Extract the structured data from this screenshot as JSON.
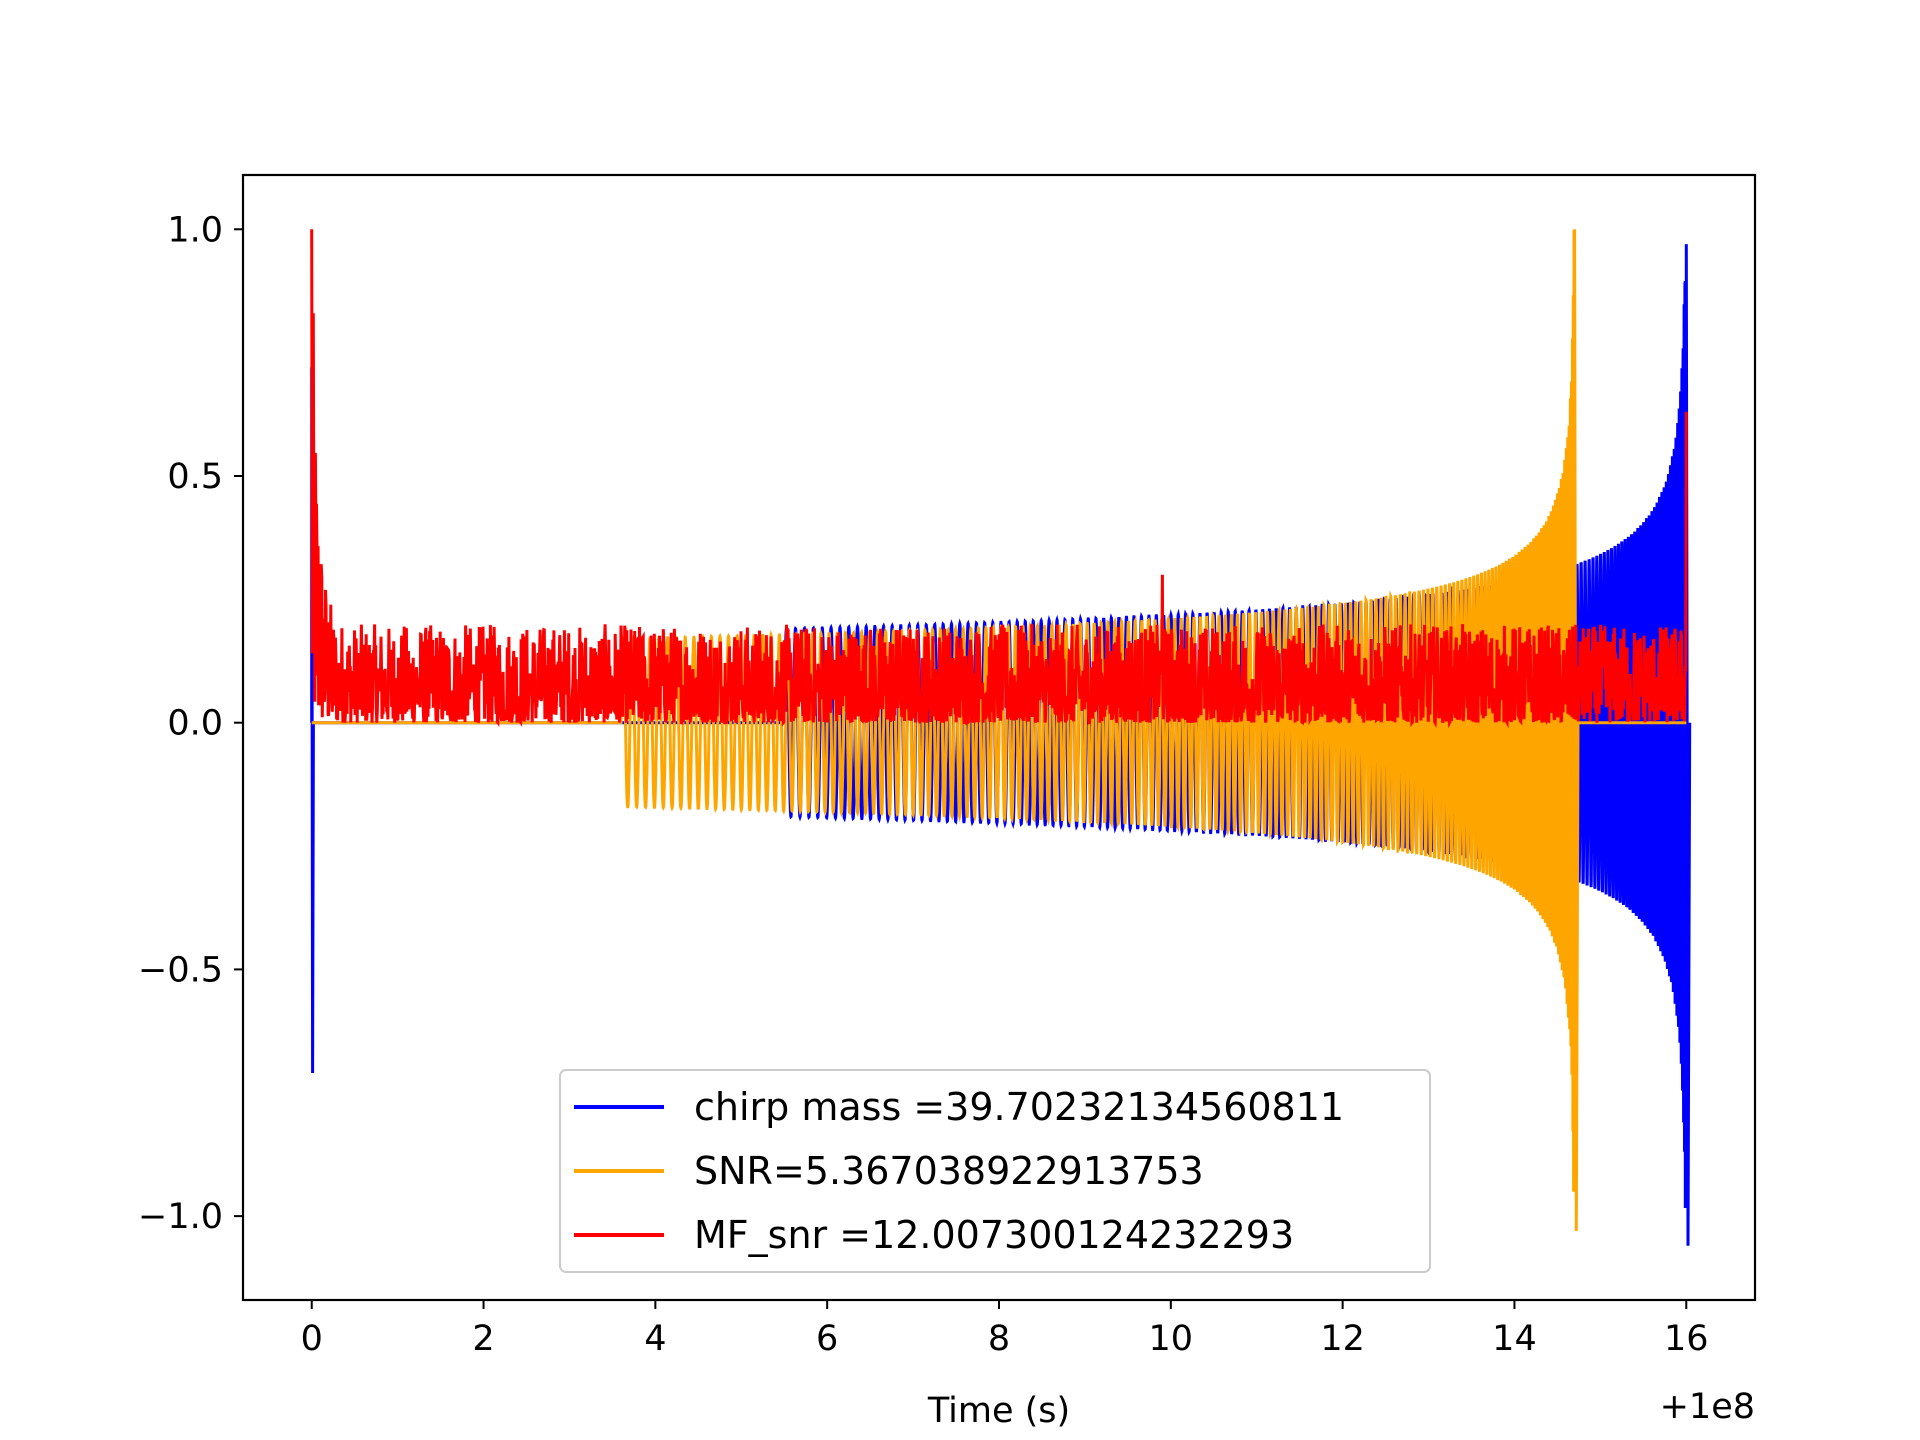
{
  "chart_data": {
    "type": "line",
    "title": "",
    "xlabel": "Time (s)",
    "ylabel": "",
    "x_offset_label": "+1e8",
    "xlim": [
      -0.8,
      16.8
    ],
    "ylim": [
      -1.17,
      1.11
    ],
    "xticks": [
      0,
      2,
      4,
      6,
      8,
      10,
      12,
      14,
      16
    ],
    "yticks": [
      -1.0,
      -0.5,
      0.0,
      0.5,
      1.0
    ],
    "xtick_labels": [
      "0",
      "2",
      "4",
      "6",
      "8",
      "10",
      "12",
      "14",
      "16"
    ],
    "ytick_labels": [
      "−1.0",
      "−0.5",
      "0.0",
      "0.5",
      "1.0"
    ],
    "grid": false,
    "legend": "lower-center",
    "series": [
      {
        "name": "chirp mass =39.70232134560811",
        "color": "#0000ff",
        "description_kind": "waveform",
        "start": 5.5,
        "end": 16.0,
        "amplitude_start": 0.19,
        "merger_peak": 0.97,
        "merger_trough": -1.06,
        "initial_spike": [
          0.72,
          -0.71
        ]
      },
      {
        "name": "SNR=5.367038922913753",
        "color": "#ffa500",
        "description_kind": "waveform",
        "start": 3.6,
        "end": 14.7,
        "amplitude_start": 0.17,
        "merger_peak": 1.0,
        "merger_trough": -1.03
      },
      {
        "name": "MF_snr =12.007300124232293",
        "color": "#ff0000",
        "description_kind": "noise",
        "start": 0.0,
        "end": 16.0,
        "initial_peak": 1.0,
        "noise_floor": 0.0,
        "noise_max": 0.2,
        "spikes": [
          [
            9.9,
            0.3
          ],
          [
            16.0,
            0.63
          ]
        ]
      }
    ]
  }
}
